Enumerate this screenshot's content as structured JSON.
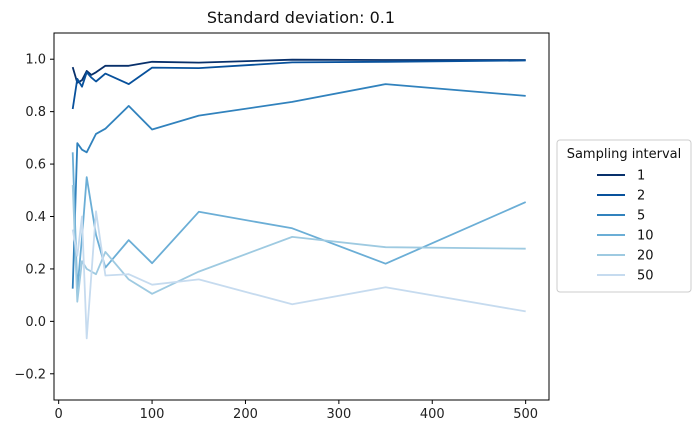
{
  "chart_data": {
    "type": "line",
    "title": "Standard deviation: 0.1",
    "xlabel": "",
    "ylabel": "",
    "xlim": [
      -5,
      525
    ],
    "ylim": [
      -0.3,
      1.1
    ],
    "xticks": [
      0,
      100,
      200,
      300,
      400,
      500
    ],
    "yticks": [
      -0.2,
      0.0,
      0.2,
      0.4,
      0.6,
      0.8,
      1.0
    ],
    "xtick_labels": [
      "0",
      "100",
      "200",
      "300",
      "400",
      "500"
    ],
    "ytick_labels": [
      "−0.2",
      "0.0",
      "0.2",
      "0.4",
      "0.6",
      "0.8",
      "1.0"
    ],
    "grid": false,
    "legend": {
      "title": "Sampling interval",
      "placement": "center-right-outside"
    },
    "series": [
      {
        "name": "1",
        "color": "#08306b",
        "x": [
          15,
          20,
          25,
          30,
          35,
          40,
          50,
          75,
          100,
          150,
          250,
          350,
          500
        ],
        "y": [
          0.97,
          0.91,
          0.92,
          0.955,
          0.94,
          0.95,
          0.975,
          0.975,
          0.99,
          0.987,
          0.998,
          0.997,
          0.997
        ]
      },
      {
        "name": "2",
        "color": "#08519c",
        "x": [
          15,
          20,
          25,
          30,
          35,
          40,
          50,
          75,
          100,
          150,
          250,
          350,
          500
        ],
        "y": [
          0.81,
          0.925,
          0.895,
          0.95,
          0.93,
          0.915,
          0.945,
          0.905,
          0.968,
          0.966,
          0.988,
          0.99,
          0.995
        ]
      },
      {
        "name": "5",
        "color": "#3182bd",
        "x": [
          15,
          20,
          25,
          30,
          40,
          50,
          75,
          100,
          150,
          250,
          350,
          500
        ],
        "y": [
          0.125,
          0.68,
          0.655,
          0.645,
          0.715,
          0.735,
          0.822,
          0.732,
          0.785,
          0.837,
          0.905,
          0.86
        ]
      },
      {
        "name": "10",
        "color": "#6baed6",
        "x": [
          15,
          20,
          25,
          30,
          40,
          50,
          75,
          100,
          150,
          250,
          350,
          500
        ],
        "y": [
          0.645,
          0.12,
          0.32,
          0.55,
          0.33,
          0.205,
          0.31,
          0.222,
          0.418,
          0.355,
          0.22,
          0.455
        ]
      },
      {
        "name": "20",
        "color": "#9ecae1",
        "x": [
          15,
          20,
          25,
          30,
          40,
          50,
          75,
          100,
          150,
          250,
          350,
          500
        ],
        "y": [
          0.52,
          0.075,
          0.23,
          0.2,
          0.18,
          0.265,
          0.16,
          0.105,
          0.19,
          0.322,
          0.283,
          0.277
        ]
      },
      {
        "name": "50",
        "color": "#c6dbef",
        "x": [
          15,
          20,
          25,
          30,
          40,
          50,
          75,
          100,
          150,
          250,
          350,
          500
        ],
        "y": [
          0.35,
          0.25,
          0.4,
          -0.065,
          0.42,
          0.175,
          0.18,
          0.14,
          0.16,
          0.065,
          0.13,
          0.038
        ]
      }
    ]
  }
}
